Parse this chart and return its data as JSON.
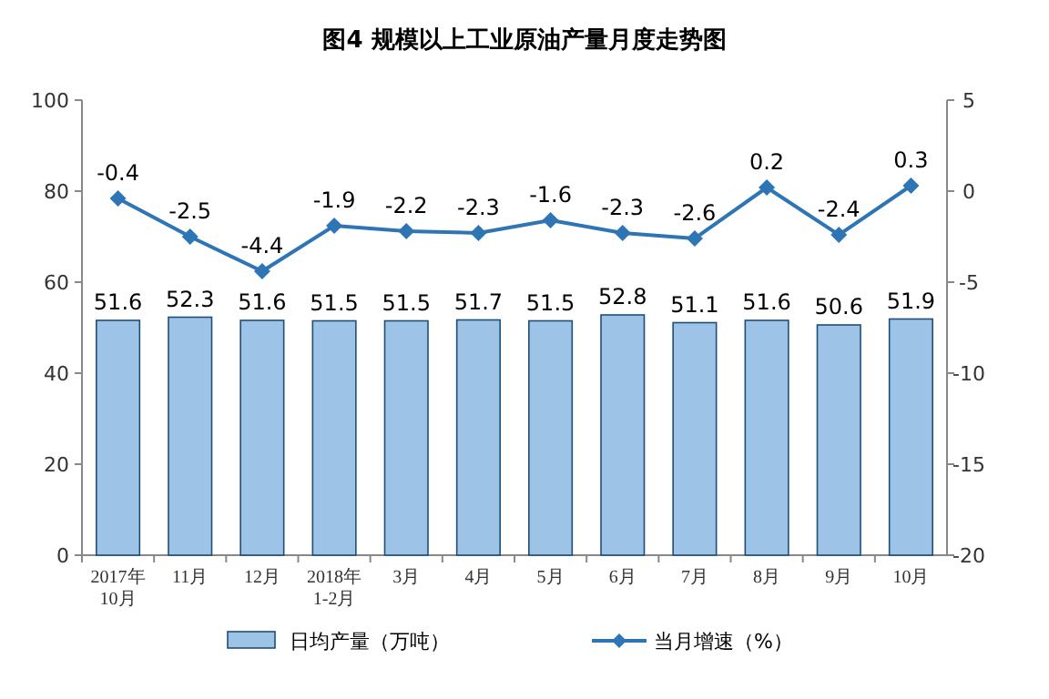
{
  "chart_data": {
    "type": "bar",
    "title": "图4  规模以上工业原油产量月度走势图",
    "categories": [
      "2017年\n10月",
      "11月",
      "12月",
      "2018年\n1-2月",
      "3月",
      "4月",
      "5月",
      "6月",
      "7月",
      "8月",
      "9月",
      "10月"
    ],
    "series": [
      {
        "name": "日均产量（万吨）",
        "color": "#9dc3e6",
        "values": [
          51.6,
          52.3,
          51.6,
          51.5,
          51.5,
          51.7,
          51.5,
          52.8,
          51.1,
          51.6,
          50.6,
          51.9
        ]
      },
      {
        "name": "当月增速（%）",
        "type": "line",
        "axis": "y2",
        "color": "#2e75b6",
        "marker": "diamond",
        "values": [
          -0.4,
          -2.5,
          -4.4,
          -1.9,
          -2.2,
          -2.3,
          -1.6,
          -2.3,
          -2.6,
          0.2,
          -2.4,
          0.3
        ]
      }
    ],
    "ylim": [
      0,
      100
    ],
    "yticks": [
      0,
      20,
      40,
      60,
      80,
      100
    ],
    "y2lim": [
      -20,
      5
    ],
    "y2ticks": [
      -20,
      -15,
      -10,
      -5,
      0,
      5
    ],
    "data_labels": true,
    "legend": "bottom"
  }
}
